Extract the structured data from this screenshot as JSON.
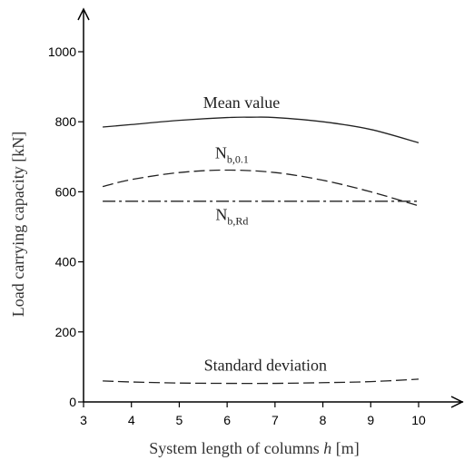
{
  "chart_data": {
    "type": "line",
    "xlabel": "System length of columns h [m]",
    "xlabel_parts": {
      "pre": "System length of columns ",
      "var": "h",
      "post": " [m]"
    },
    "ylabel": "Load carrying capacity  [kN]",
    "xlim": [
      3,
      10
    ],
    "ylim": [
      0,
      1000
    ],
    "x_ticks": [
      "3",
      "4",
      "5",
      "6",
      "7",
      "8",
      "9",
      "10"
    ],
    "y_ticks": [
      "0",
      "200",
      "400",
      "600",
      "800",
      "1000"
    ],
    "grid": false,
    "legend": "none",
    "series": [
      {
        "name": "Mean value",
        "style": "solid",
        "x": [
          3.4,
          4,
          5,
          6,
          6.5,
          7,
          8,
          9,
          10
        ],
        "y": [
          785,
          792,
          804,
          812,
          813,
          812,
          800,
          778,
          740
        ]
      },
      {
        "name": "Nb,0.1",
        "style": "dashed",
        "x": [
          3.4,
          4,
          5,
          6,
          7,
          8,
          9,
          10
        ],
        "y": [
          615,
          635,
          655,
          662,
          655,
          633,
          600,
          560
        ]
      },
      {
        "name": "Nb,Rd",
        "style": "dashdot",
        "x": [
          3.4,
          10
        ],
        "y": [
          573,
          573
        ]
      },
      {
        "name": "Standard deviation",
        "style": "dashed",
        "x": [
          3.4,
          4,
          5,
          6,
          7,
          8,
          9,
          10
        ],
        "y": [
          60,
          57,
          54,
          53,
          53,
          55,
          58,
          65
        ]
      }
    ],
    "annotations": [
      {
        "text": "Mean value",
        "x": 6.3,
        "y": 840
      },
      {
        "text": "N",
        "sub": "b,0.1",
        "x": 6.1,
        "y": 695
      },
      {
        "text": "N",
        "sub": "b,Rd",
        "x": 6.1,
        "y": 520
      },
      {
        "text": "Standard deviation",
        "x": 6.8,
        "y": 90
      }
    ]
  }
}
